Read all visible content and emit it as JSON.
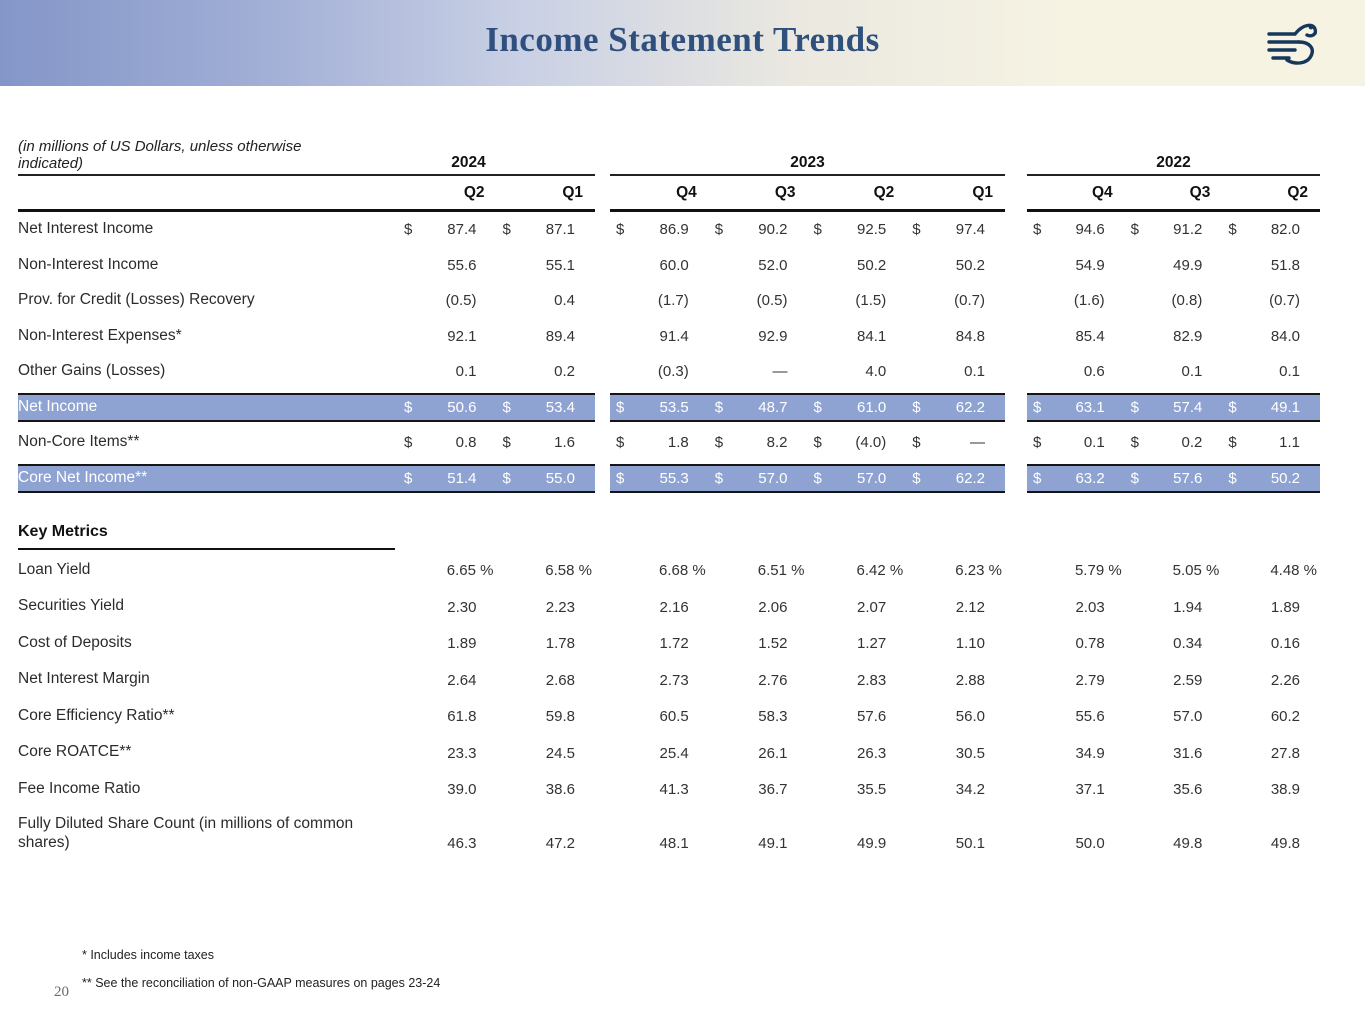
{
  "page": {
    "number": "20"
  },
  "header": {
    "title": "Income Statement Trends",
    "logo": "griffin-logo"
  },
  "colors": {
    "highlight": "#8fa3d2",
    "title": "#2f4f7d",
    "banner_left": "#8496c8",
    "banner_right": "#f6f3e3"
  },
  "table": {
    "units_note": "(in millions of US Dollars, unless otherwise indicated)",
    "year_groups": [
      {
        "year": "2024",
        "quarters": [
          "Q2",
          "Q1"
        ]
      },
      {
        "year": "2023",
        "quarters": [
          "Q4",
          "Q3",
          "Q2",
          "Q1"
        ]
      },
      {
        "year": "2022",
        "quarters": [
          "Q4",
          "Q3",
          "Q2"
        ]
      }
    ],
    "income_rows": [
      {
        "label": "Net Interest Income",
        "dollar": true,
        "highlight": false,
        "values": [
          "87.4",
          "87.1",
          "86.9",
          "90.2",
          "92.5",
          "97.4",
          "94.6",
          "91.2",
          "82.0"
        ]
      },
      {
        "label": "Non-Interest Income",
        "dollar": false,
        "highlight": false,
        "values": [
          "55.6",
          "55.1",
          "60.0",
          "52.0",
          "50.2",
          "50.2",
          "54.9",
          "49.9",
          "51.8"
        ]
      },
      {
        "label": "Prov. for Credit (Losses) Recovery",
        "dollar": false,
        "highlight": false,
        "values": [
          "(0.5)",
          "0.4",
          "(1.7)",
          "(0.5)",
          "(1.5)",
          "(0.7)",
          "(1.6)",
          "(0.8)",
          "(0.7)"
        ]
      },
      {
        "label": "Non-Interest Expenses*",
        "dollar": false,
        "highlight": false,
        "values": [
          "92.1",
          "89.4",
          "91.4",
          "92.9",
          "84.1",
          "84.8",
          "85.4",
          "82.9",
          "84.0"
        ]
      },
      {
        "label": "Other Gains (Losses)",
        "dollar": false,
        "highlight": false,
        "values": [
          "0.1",
          "0.2",
          "(0.3)",
          "—",
          "4.0",
          "0.1",
          "0.6",
          "0.1",
          "0.1"
        ]
      },
      {
        "label": "Net Income",
        "dollar": true,
        "highlight": true,
        "values": [
          "50.6",
          "53.4",
          "53.5",
          "48.7",
          "61.0",
          "62.2",
          "63.1",
          "57.4",
          "49.1"
        ]
      },
      {
        "label": "Non-Core Items**",
        "dollar": true,
        "highlight": false,
        "values": [
          "0.8",
          "1.6",
          "1.8",
          "8.2",
          "(4.0)",
          "—",
          "0.1",
          "0.2",
          "1.1"
        ]
      },
      {
        "label": "Core Net Income**",
        "dollar": true,
        "highlight": true,
        "values": [
          "51.4",
          "55.0",
          "55.3",
          "57.0",
          "57.0",
          "62.2",
          "63.2",
          "57.6",
          "50.2"
        ]
      }
    ],
    "key_metrics_title": "Key Metrics",
    "metric_rows": [
      {
        "label": "Loan Yield",
        "values": [
          "6.65 %",
          "6.58 %",
          "6.68 %",
          "6.51 %",
          "6.42 %",
          "6.23 %",
          "5.79 %",
          "5.05 %",
          "4.48 %"
        ]
      },
      {
        "label": "Securities Yield",
        "values": [
          "2.30",
          "2.23",
          "2.16",
          "2.06",
          "2.07",
          "2.12",
          "2.03",
          "1.94",
          "1.89"
        ]
      },
      {
        "label": "Cost of Deposits",
        "values": [
          "1.89",
          "1.78",
          "1.72",
          "1.52",
          "1.27",
          "1.10",
          "0.78",
          "0.34",
          "0.16"
        ]
      },
      {
        "label": "Net Interest Margin",
        "values": [
          "2.64",
          "2.68",
          "2.73",
          "2.76",
          "2.83",
          "2.88",
          "2.79",
          "2.59",
          "2.26"
        ]
      },
      {
        "label": "Core Efficiency Ratio**",
        "values": [
          "61.8",
          "59.8",
          "60.5",
          "58.3",
          "57.6",
          "56.0",
          "55.6",
          "57.0",
          "60.2"
        ]
      },
      {
        "label": "Core ROATCE**",
        "values": [
          "23.3",
          "24.5",
          "25.4",
          "26.1",
          "26.3",
          "30.5",
          "34.9",
          "31.6",
          "27.8"
        ]
      },
      {
        "label": "Fee Income Ratio",
        "values": [
          "39.0",
          "38.6",
          "41.3",
          "36.7",
          "35.5",
          "34.2",
          "37.1",
          "35.6",
          "38.9"
        ]
      },
      {
        "label": "Fully Diluted Share Count (in millions of common shares)",
        "values": [
          "46.3",
          "47.2",
          "48.1",
          "49.1",
          "49.9",
          "50.1",
          "50.0",
          "49.8",
          "49.8"
        ]
      }
    ],
    "footnotes": [
      "* Includes income taxes",
      "** See the reconciliation of non-GAAP measures on pages 23-24"
    ]
  }
}
